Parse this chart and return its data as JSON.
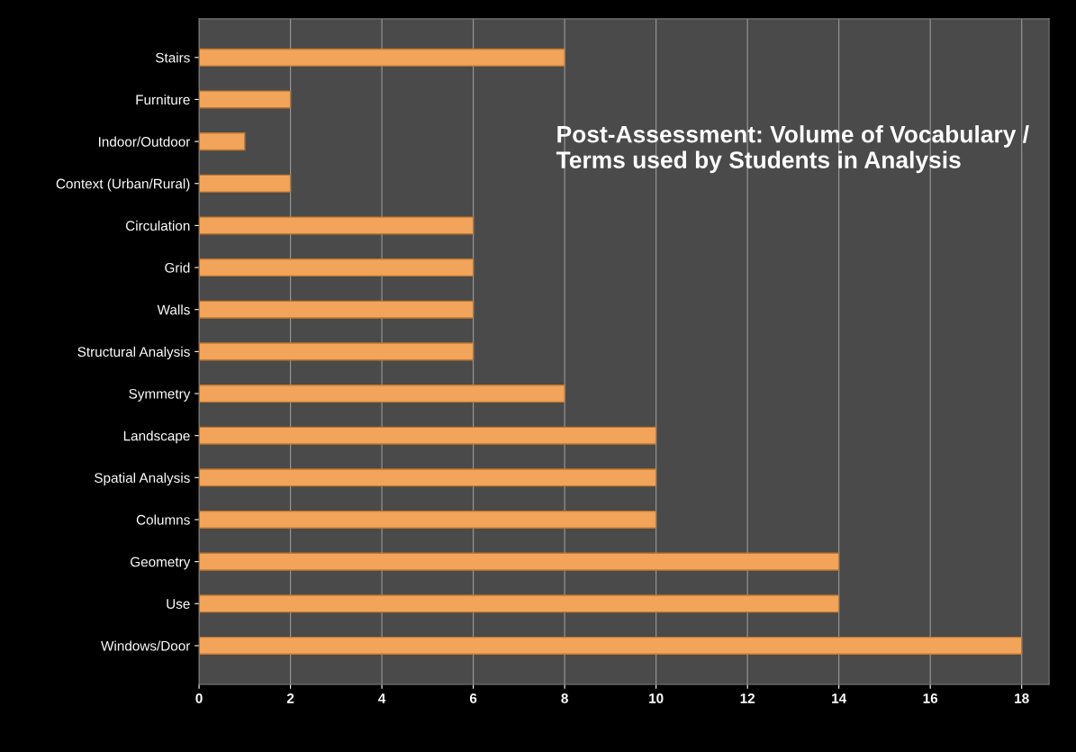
{
  "chart_data": {
    "type": "bar",
    "orientation": "horizontal",
    "title": "Post-Assessment: Volume of Vocabulary / Terms used by Students in Analysis",
    "categories": [
      "Stairs",
      "Furniture",
      "Indoor/Outdoor",
      "Context (Urban/Rural)",
      "Circulation",
      "Grid",
      "Walls",
      "Structural Analysis",
      "Symmetry",
      "Landscape",
      "Spatial Analysis",
      "Columns",
      "Geometry",
      "Use",
      "Windows/Door"
    ],
    "values": [
      8,
      2,
      1,
      2,
      6,
      6,
      6,
      6,
      8,
      10,
      10,
      10,
      14,
      14,
      18
    ],
    "color": "#f2a55a",
    "xlim": [
      0,
      18.6
    ],
    "xticks": [
      0,
      2,
      4,
      6,
      8,
      10,
      12,
      14,
      16,
      18
    ],
    "grid": "x",
    "legend": false
  }
}
